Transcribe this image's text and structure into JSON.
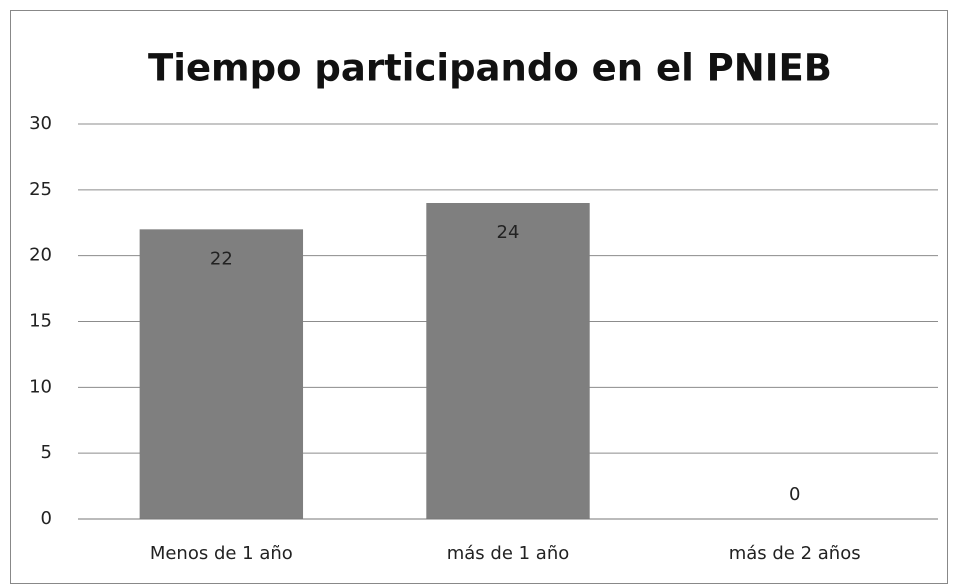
{
  "chart_data": {
    "type": "bar",
    "title": "Tiempo participando en el PNIEB",
    "categories": [
      "Menos de 1 año",
      "más de 1 año",
      "más de 2 años"
    ],
    "values": [
      22,
      24,
      0
    ],
    "color": "#7f7f7f",
    "ylim": [
      0,
      30
    ],
    "yticks": [
      0,
      5,
      10,
      15,
      20,
      25,
      30
    ],
    "grid": true
  }
}
